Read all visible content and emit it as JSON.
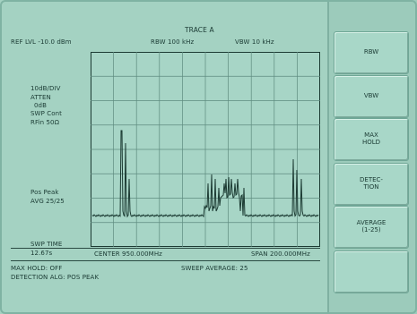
{
  "header": {
    "title": "TRACE A",
    "ref_lvl": "REF LVL -10.0 dBm",
    "rbw": "RBW 100 kHz",
    "vbw": "VBW 10 kHz"
  },
  "left_info": {
    "scale": "10dB/DIV",
    "atten": "ATTEN",
    "atten_val": "0dB",
    "swp": "SWP Cont",
    "rfin": "RFin 50Ω",
    "detector": "Pos Peak",
    "avg": "AVG 25/25",
    "swp_time_label": "SWP TIME",
    "swp_time_val": "12.67s"
  },
  "bottom": {
    "center": "CENTER 950.000MHz",
    "span": "SPAN 200.000MHz",
    "max_hold": "MAX HOLD: OFF",
    "sweep_avg": "SWEEP AVERAGE: 25",
    "detection": "DETECTION ALG: POS PEAK"
  },
  "softkeys": [
    {
      "label": "RBW"
    },
    {
      "label": "VBW"
    },
    {
      "label": "MAX\nHOLD"
    },
    {
      "label": "DETEC-\nTION"
    },
    {
      "label": "AVERAGE\n(1-25)"
    },
    {
      "label": ""
    }
  ],
  "colors": {
    "screen": "#a4d2c2",
    "ink": "#1a3a33",
    "trace": "#1c3b33"
  }
}
